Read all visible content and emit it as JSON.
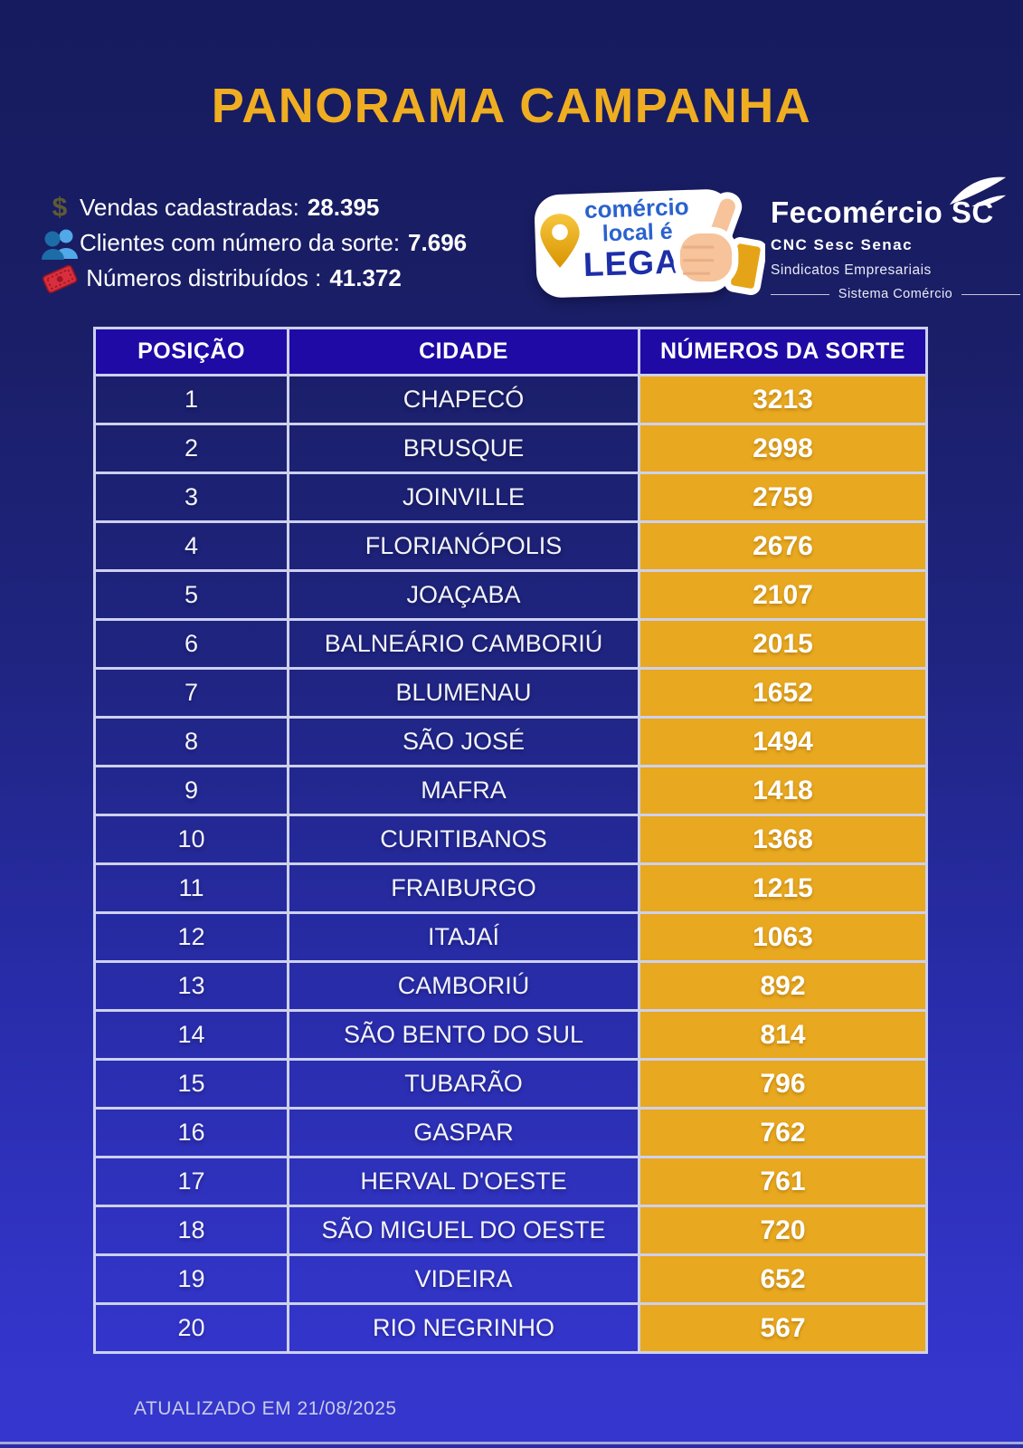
{
  "page": {
    "title": "PANORAMA CAMPANHA",
    "updated": "ATUALIZADO EM 21/08/2025"
  },
  "stats": {
    "items": [
      {
        "icon": "dollar-icon",
        "label": "Vendas cadastradas:",
        "value": "28.395"
      },
      {
        "icon": "clients-icon",
        "label": "Clientes com número da sorte:",
        "value": "7.696"
      },
      {
        "icon": "ticket-icon",
        "label": " Números distribuídos :",
        "value": "41.372"
      }
    ]
  },
  "badge": {
    "line1": "comércio",
    "line2": "local é",
    "line3": "LEGAL"
  },
  "logo": {
    "name": "Fecomércio SC",
    "brands": "CNC Sesc Senac",
    "sub1": "Sindicatos Empresariais",
    "sub2": "Sistema Comércio"
  },
  "table": {
    "headers": [
      "POSIÇÃO",
      "CIDADE",
      "NÚMEROS DA SORTE"
    ],
    "rows": [
      [
        1,
        "CHAPECÓ",
        3213
      ],
      [
        2,
        "BRUSQUE",
        2998
      ],
      [
        3,
        "JOINVILLE",
        2759
      ],
      [
        4,
        "FLORIANÓPOLIS",
        2676
      ],
      [
        5,
        "JOAÇABA",
        2107
      ],
      [
        6,
        "BALNEÁRIO CAMBORIÚ",
        2015
      ],
      [
        7,
        "BLUMENAU",
        1652
      ],
      [
        8,
        "SÃO JOSÉ",
        1494
      ],
      [
        9,
        "MAFRA",
        1418
      ],
      [
        10,
        "CURITIBANOS",
        1368
      ],
      [
        11,
        "FRAIBURGO",
        1215
      ],
      [
        12,
        "ITAJAÍ",
        1063
      ],
      [
        13,
        "CAMBORIÚ",
        892
      ],
      [
        14,
        "SÃO BENTO DO SUL",
        814
      ],
      [
        15,
        "TUBARÃO",
        796
      ],
      [
        16,
        "GASPAR",
        762
      ],
      [
        17,
        "HERVAL D'OESTE",
        761
      ],
      [
        18,
        "SÃO MIGUEL DO OESTE",
        720
      ],
      [
        19,
        "VIDEIRA",
        652
      ],
      [
        20,
        "RIO NEGRINHO",
        567
      ]
    ]
  },
  "colors": {
    "background_top": "#161A5E",
    "background_bottom": "#3436CE",
    "title_gold": "#EFAE21",
    "table_header_blue": "#1F0AA5",
    "numbers_gold": "#E8A81F",
    "table_border": "#CDD1EE",
    "badge_blue": "#2B62CE",
    "ticket_red": "#D82F3F"
  }
}
